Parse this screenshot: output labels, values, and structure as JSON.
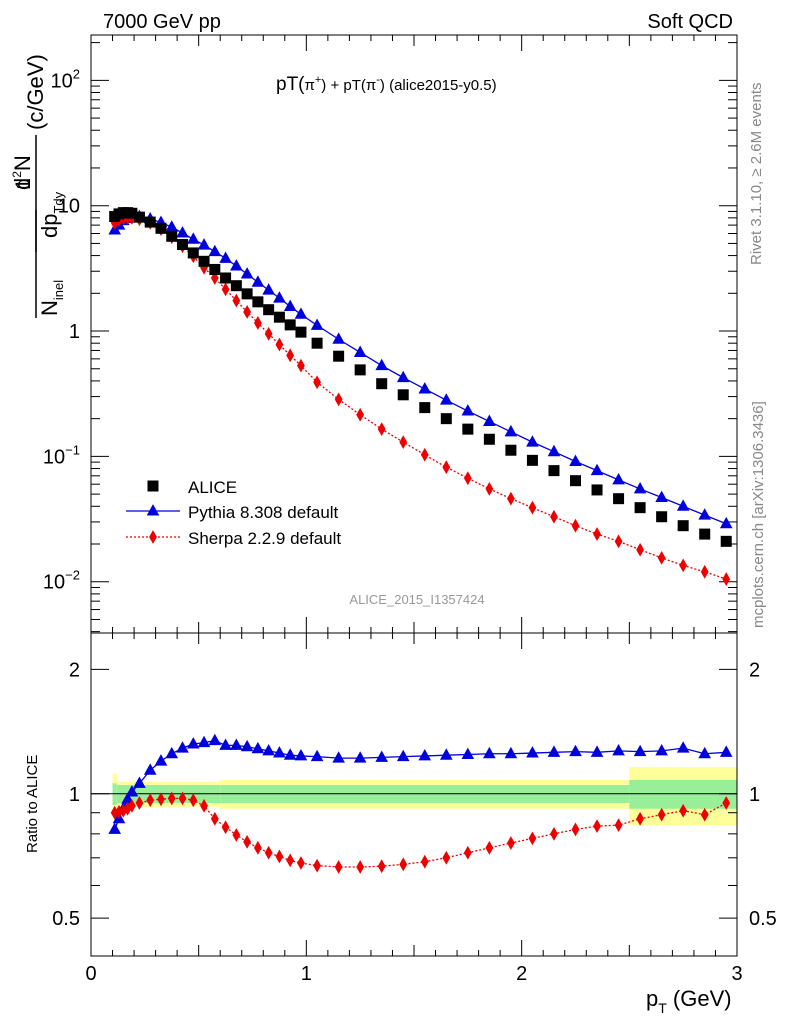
{
  "header": {
    "left": "7000 GeV pp",
    "right": "Soft QCD"
  },
  "side_labels": {
    "rivet": "Rivet 3.1.10, ≥ 2.6M events",
    "mcplots": "mcplots.cern.ch [arXiv:1306.3436]"
  },
  "watermark": "ALICE_2015_I1357424",
  "colors": {
    "alice": "#000000",
    "pythia": "#0000dd",
    "sherpa": "#ee0000",
    "band_inner": "#99ee99",
    "band_outer": "#ffff99"
  },
  "chart_data": [
    {
      "type": "scatter",
      "title": "pT(π⁺) + pT(π⁻) (alice2015-y0.5)",
      "title_parts": {
        "a": "pT(",
        "b": "π",
        "c": "+",
        "d": ") + pT(",
        "e": "π",
        "f": "-",
        "g": ") (alice2015-y0.5)"
      },
      "xlabel": "p_T (GeV)",
      "ylabel": "1/N_inel d²N/dp_T dy (c/GeV)",
      "yscale": "log",
      "xlim": [
        0,
        3
      ],
      "ylim": [
        0.0039,
        230
      ],
      "x_ticks": [
        0,
        1,
        2,
        3
      ],
      "y_ticks": [
        {
          "value": 0.01,
          "label": "10",
          "exp": "−2"
        },
        {
          "value": 0.1,
          "label": "10",
          "exp": "−1"
        },
        {
          "value": 1,
          "label": "1",
          "exp": ""
        },
        {
          "value": 10,
          "label": "10",
          "exp": ""
        },
        {
          "value": 100,
          "label": "10",
          "exp": "2"
        }
      ],
      "legend_position": "lower-left",
      "x": [
        0.11,
        0.13,
        0.15,
        0.17,
        0.19,
        0.225,
        0.275,
        0.325,
        0.375,
        0.425,
        0.475,
        0.525,
        0.575,
        0.625,
        0.675,
        0.725,
        0.775,
        0.825,
        0.875,
        0.925,
        0.975,
        1.05,
        1.15,
        1.25,
        1.35,
        1.45,
        1.55,
        1.65,
        1.75,
        1.85,
        1.95,
        2.05,
        2.15,
        2.25,
        2.35,
        2.45,
        2.55,
        2.65,
        2.75,
        2.85,
        2.95
      ],
      "series": [
        {
          "name": "ALICE",
          "marker": "square",
          "color": "#000000",
          "values": [
            8.2,
            8.6,
            8.8,
            8.8,
            8.7,
            8.1,
            7.4,
            6.6,
            5.7,
            4.9,
            4.2,
            3.6,
            3.1,
            2.65,
            2.3,
            1.98,
            1.71,
            1.48,
            1.29,
            1.12,
            0.98,
            0.8,
            0.63,
            0.49,
            0.38,
            0.31,
            0.245,
            0.2,
            0.165,
            0.137,
            0.112,
            0.093,
            0.077,
            0.064,
            0.054,
            0.046,
            0.039,
            0.033,
            0.028,
            0.024,
            0.021
          ]
        },
        {
          "name": "Pythia 8.308 default",
          "marker": "triangle",
          "color": "#0000dd",
          "values": [
            6.4,
            7.0,
            7.6,
            7.9,
            8.1,
            8.2,
            7.85,
            7.35,
            6.75,
            6.05,
            5.4,
            4.85,
            4.3,
            3.8,
            3.3,
            2.85,
            2.45,
            2.12,
            1.83,
            1.57,
            1.36,
            1.11,
            0.86,
            0.675,
            0.53,
            0.425,
            0.345,
            0.281,
            0.23,
            0.19,
            0.157,
            0.13,
            0.109,
            0.091,
            0.077,
            0.065,
            0.055,
            0.047,
            0.04,
            0.034,
            0.029
          ]
        },
        {
          "name": "Sherpa 2.2.9 default",
          "marker": "diamond",
          "color": "#ee0000",
          "values": [
            7.3,
            7.7,
            7.9,
            8.0,
            8.0,
            7.8,
            7.3,
            6.5,
            5.6,
            4.75,
            3.95,
            3.2,
            2.65,
            2.15,
            1.75,
            1.42,
            1.16,
            0.95,
            0.78,
            0.64,
            0.53,
            0.39,
            0.285,
            0.215,
            0.165,
            0.13,
            0.103,
            0.082,
            0.067,
            0.055,
            0.046,
            0.039,
            0.033,
            0.028,
            0.024,
            0.021,
            0.018,
            0.0155,
            0.0135,
            0.012,
            0.0105
          ]
        }
      ]
    },
    {
      "type": "line",
      "ylabel": "Ratio to ALICE",
      "yscale": "log",
      "xlim": [
        0,
        3
      ],
      "ylim": [
        0.405,
        2.45
      ],
      "y_ticks": [
        {
          "value": 0.5,
          "label": "0.5"
        },
        {
          "value": 1,
          "label": "1"
        },
        {
          "value": 2,
          "label": "2"
        }
      ],
      "reference_line": 1,
      "band_edges": [
        0.1,
        0.12,
        0.6,
        2.5,
        3.0
      ],
      "band_inner": {
        "lo": [
          0.94,
          0.95,
          0.95,
          0.92
        ],
        "hi": [
          1.06,
          1.05,
          1.05,
          1.08
        ]
      },
      "band_outer": {
        "lo": [
          0.88,
          0.93,
          0.92,
          0.84
        ],
        "hi": [
          1.12,
          1.07,
          1.08,
          1.16
        ]
      },
      "series": [
        {
          "name": "Pythia 8.308 default",
          "color": "#0000dd",
          "values": [
            0.82,
            0.87,
            0.92,
            0.97,
            1.01,
            1.06,
            1.14,
            1.2,
            1.25,
            1.29,
            1.32,
            1.33,
            1.345,
            1.31,
            1.31,
            1.3,
            1.285,
            1.27,
            1.255,
            1.24,
            1.235,
            1.23,
            1.22,
            1.22,
            1.225,
            1.23,
            1.235,
            1.24,
            1.245,
            1.25,
            1.25,
            1.255,
            1.26,
            1.265,
            1.26,
            1.27,
            1.265,
            1.27,
            1.29,
            1.25,
            1.26
          ]
        },
        {
          "name": "Sherpa 2.2.9 default",
          "color": "#ee0000",
          "values": [
            0.9,
            0.905,
            0.91,
            0.92,
            0.935,
            0.95,
            0.965,
            0.97,
            0.975,
            0.975,
            0.965,
            0.935,
            0.87,
            0.83,
            0.795,
            0.765,
            0.74,
            0.72,
            0.705,
            0.69,
            0.68,
            0.67,
            0.665,
            0.665,
            0.668,
            0.675,
            0.685,
            0.7,
            0.72,
            0.74,
            0.76,
            0.78,
            0.8,
            0.82,
            0.835,
            0.84,
            0.87,
            0.89,
            0.91,
            0.89,
            0.95
          ]
        }
      ]
    }
  ]
}
